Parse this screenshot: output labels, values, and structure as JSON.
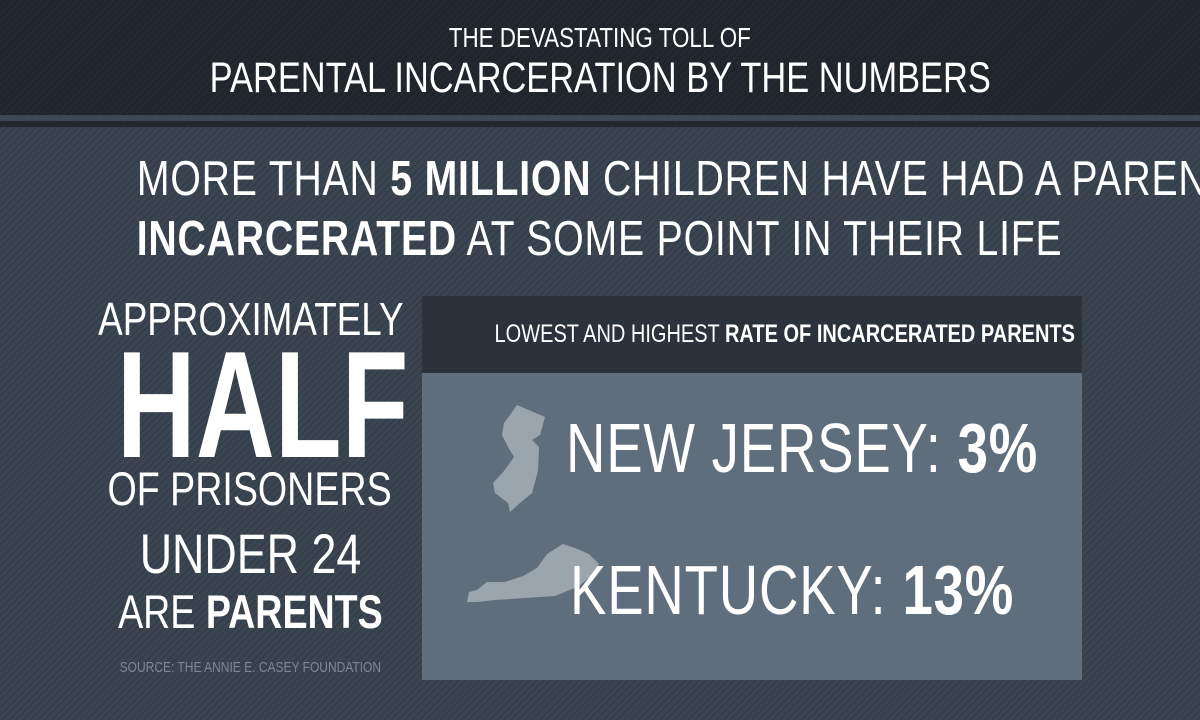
{
  "header": {
    "line1": "THE DEVASTATING TOLL OF",
    "line2": "PARENTAL INCARCERATION BY THE NUMBERS"
  },
  "headline": {
    "line1_a": "MORE THAN ",
    "line1_b": "5 MILLION",
    "line1_c": " CHILDREN HAVE HAD A PARENT",
    "line2_a": "INCARCERATED",
    "line2_b": " AT SOME POINT IN THEIR LIFE"
  },
  "left_stat": {
    "approx": "APPROXIMATELY",
    "half": "HALF",
    "of_prisoners": "OF PRISONERS",
    "under": "UNDER 24",
    "are": "ARE ",
    "parents": "PARENTS",
    "source": "SOURCE: THE ANNIE E. CASEY FOUNDATION"
  },
  "rates_box": {
    "title_a": "LOWEST AND HIGHEST ",
    "title_b": "RATE OF INCARCERATED PARENTS",
    "items": [
      {
        "state": "NEW JERSEY: ",
        "value": "3%",
        "icon": "new-jersey-map-icon"
      },
      {
        "state": "KENTUCKY: ",
        "value": "13%",
        "icon": "kentucky-map-icon"
      }
    ]
  },
  "colors": {
    "header_bg": "#1f252b",
    "page_bg": "#3b4552",
    "box_header_bg": "#2b323b",
    "box_bg": "#5f6e7d",
    "state_fill": "#9ba5ae",
    "source_text": "#7d8792"
  }
}
